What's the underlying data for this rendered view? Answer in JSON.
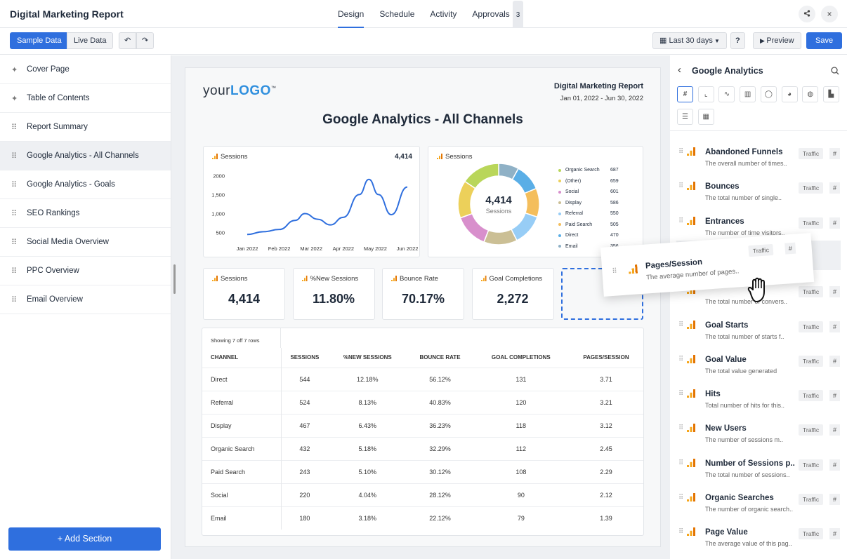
{
  "header": {
    "title": "Digital Marketing Report",
    "tabs": [
      "Design",
      "Schedule",
      "Activity",
      "Approvals"
    ],
    "approvals_count": "3",
    "share_icon": "share-icon",
    "close_icon": "×"
  },
  "toolbar": {
    "sample": "Sample Data",
    "live": "Live Data",
    "undo": "↶",
    "redo": "↷",
    "date_range": "Last 30 days",
    "help": "?",
    "preview": "Preview",
    "save": "Save"
  },
  "sidebar": {
    "items": [
      {
        "label": "Cover Page",
        "icon": "pin"
      },
      {
        "label": "Table of Contents",
        "icon": "pin"
      },
      {
        "label": "Report Summary",
        "icon": "drag"
      },
      {
        "label": "Google Analytics - All Channels",
        "icon": "drag"
      },
      {
        "label": "Google Analytics - Goals",
        "icon": "drag"
      },
      {
        "label": "SEO Rankings",
        "icon": "drag"
      },
      {
        "label": "Social Media Overview",
        "icon": "drag"
      },
      {
        "label": "PPC Overview",
        "icon": "drag"
      },
      {
        "label": "Email Overview",
        "icon": "drag"
      }
    ],
    "add_section": "+ Add Section"
  },
  "report": {
    "logo_a": "your",
    "logo_b": "LOGO",
    "logo_tm": "™",
    "title": "Digital Marketing Report",
    "dates": "Jan 01, 2022 - Jun 30, 2022",
    "heading": "Google Analytics - All Channels"
  },
  "chart_data": [
    {
      "type": "line",
      "title": "Sessions",
      "total": "4,414",
      "x": [
        "Jan 2022",
        "Feb 2022",
        "Mar 2022",
        "Apr 2022",
        "May 2022",
        "Jun 2022"
      ],
      "yticks": [
        "2000",
        "1,500",
        "1,000",
        "500"
      ],
      "ylim": [
        250,
        2100
      ],
      "series": [
        {
          "name": "Sessions",
          "points": [
            [
              0,
              450
            ],
            [
              0.5,
              520
            ],
            [
              1,
              580
            ],
            [
              1.5,
              820
            ],
            [
              1.8,
              1000
            ],
            [
              2.2,
              850
            ],
            [
              2.6,
              700
            ],
            [
              3,
              900
            ],
            [
              3.5,
              1500
            ],
            [
              3.8,
              1900
            ],
            [
              4.1,
              1500
            ],
            [
              4.5,
              970
            ],
            [
              5,
              1700
            ]
          ]
        }
      ],
      "color": "#2f6fde"
    },
    {
      "type": "pie",
      "title": "Sessions",
      "center_value": "4,414",
      "center_label": "Sessions",
      "labels": [
        "Organic Search",
        "(Other)",
        "Social",
        "Display",
        "Referral",
        "Paid Search",
        "Direct",
        "Email"
      ],
      "values": [
        687,
        659,
        601,
        586,
        550,
        505,
        470,
        356
      ],
      "colors": [
        "#b9d65a",
        "#ecd05a",
        "#d88fcc",
        "#cbbf95",
        "#97cdf6",
        "#f4be5c",
        "#5aaee6",
        "#8fb1c6"
      ]
    }
  ],
  "kpis": [
    {
      "label": "Sessions",
      "value": "4,414"
    },
    {
      "label": "%New Sessions",
      "value": "11.80%"
    },
    {
      "label": "Bounce Rate",
      "value": "70.17%"
    },
    {
      "label": "Goal Completions",
      "value": "2,272"
    }
  ],
  "table": {
    "caption": "Showing 7 off 7 rows",
    "headers": [
      "CHANNEL",
      "SESSIONS",
      "%NEW SESSIONS",
      "BOUNCE RATE",
      "GOAL COMPLETIONS",
      "PAGES/SESSION"
    ],
    "rows": [
      [
        "Direct",
        "544",
        "12.18%",
        "56.12%",
        "131",
        "3.71"
      ],
      [
        "Referral",
        "524",
        "8.13%",
        "40.83%",
        "120",
        "3.21"
      ],
      [
        "Display",
        "467",
        "6.43%",
        "36.23%",
        "118",
        "3.12"
      ],
      [
        "Organic Search",
        "432",
        "5.18%",
        "32.29%",
        "112",
        "2.45"
      ],
      [
        "Paid Search",
        "243",
        "5.10%",
        "30.12%",
        "108",
        "2.29"
      ],
      [
        "Social",
        "220",
        "4.04%",
        "28.12%",
        "90",
        "2.12"
      ],
      [
        "Email",
        "180",
        "3.18%",
        "22.12%",
        "79",
        "1.39"
      ]
    ]
  },
  "panel": {
    "title": "Google Analytics",
    "back": "‹",
    "types": [
      "#",
      "line",
      "wave",
      "bar",
      "donut",
      "pie",
      "globe",
      "area",
      "hbar",
      "table"
    ],
    "items": [
      {
        "name": "Abandoned Funnels",
        "desc": "The overall number of times.."
      },
      {
        "name": "Bounces",
        "desc": "The total number of single.."
      },
      {
        "name": "Entrances",
        "desc": "The number of time visitors.."
      },
      {
        "name": "",
        "desc": "The total number of convers.."
      },
      {
        "name": "Goal Starts",
        "desc": "The total number of starts f.."
      },
      {
        "name": "Goal Value",
        "desc": "The total value generated"
      },
      {
        "name": "Hits",
        "desc": "Total number of hits for this.."
      },
      {
        "name": "New Users",
        "desc": "The number of sessions m.."
      },
      {
        "name": "Number of Sessions p..",
        "desc": "The total number of sessions.."
      },
      {
        "name": "Organic Searches",
        "desc": "The number of organic search.."
      },
      {
        "name": "Page Value",
        "desc": "The average value of this pag.."
      }
    ],
    "tag": "Traffic",
    "hash": "#",
    "dragged": {
      "name": "Pages/Session",
      "desc": "The average number of pages..",
      "tag": "Traffic",
      "hash": "#"
    }
  }
}
